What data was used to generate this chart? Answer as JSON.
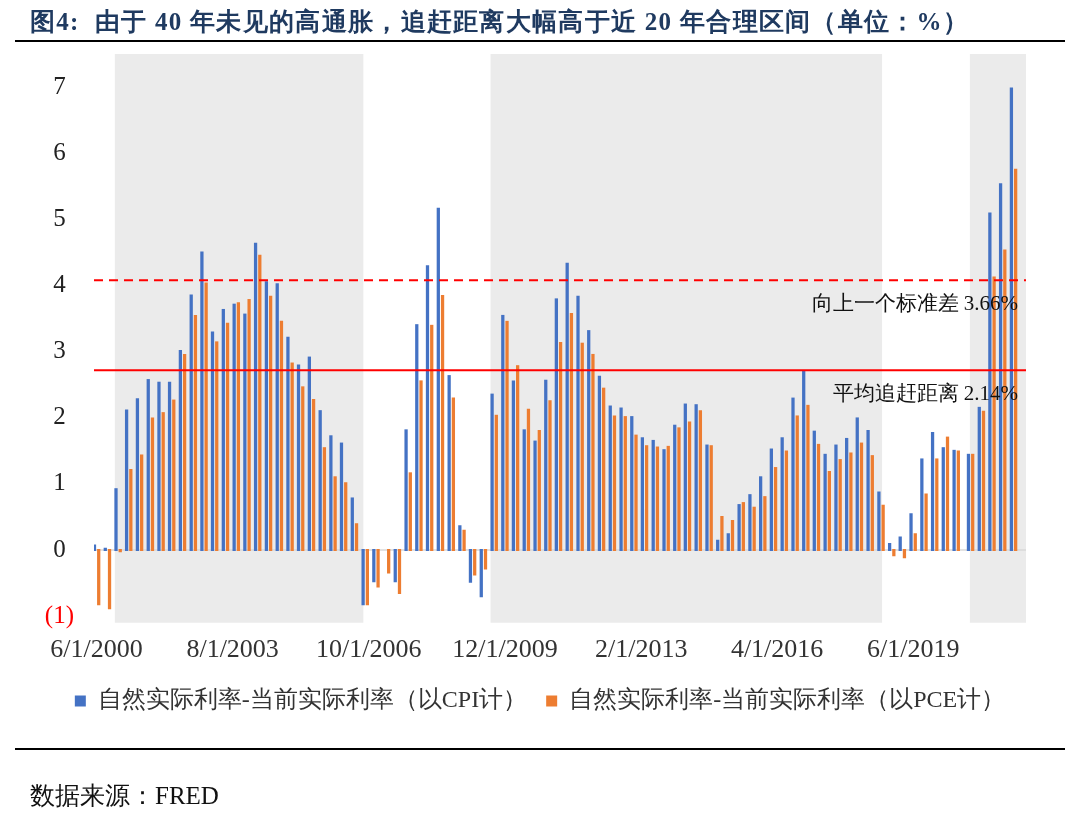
{
  "chart_data": {
    "type": "bar",
    "title": "图4:  由于 40 年未见的高通胀，追赶距离大幅高于近 20 年合理区间（单位：%）",
    "x": [
      "2000-06",
      "2000-09",
      "2000-12",
      "2001-03",
      "2001-06",
      "2001-09",
      "2001-12",
      "2002-03",
      "2002-06",
      "2002-09",
      "2002-12",
      "2003-03",
      "2003-06",
      "2003-09",
      "2003-12",
      "2004-03",
      "2004-06",
      "2004-09",
      "2004-12",
      "2005-03",
      "2005-06",
      "2005-09",
      "2005-12",
      "2006-03",
      "2006-06",
      "2006-09",
      "2006-12",
      "2007-03",
      "2007-06",
      "2007-09",
      "2007-12",
      "2008-03",
      "2008-06",
      "2008-09",
      "2008-12",
      "2009-03",
      "2009-06",
      "2009-09",
      "2009-12",
      "2010-03",
      "2010-06",
      "2010-09",
      "2010-12",
      "2011-03",
      "2011-06",
      "2011-09",
      "2011-12",
      "2012-03",
      "2012-06",
      "2012-09",
      "2012-12",
      "2013-03",
      "2013-06",
      "2013-09",
      "2013-12",
      "2014-03",
      "2014-06",
      "2014-09",
      "2014-12",
      "2015-03",
      "2015-06",
      "2015-09",
      "2015-12",
      "2016-03",
      "2016-06",
      "2016-09",
      "2016-12",
      "2017-03",
      "2017-06",
      "2017-09",
      "2017-12",
      "2018-03",
      "2018-06",
      "2018-09",
      "2018-12",
      "2019-03",
      "2019-06",
      "2019-09",
      "2019-12",
      "2020-03",
      "2020-06",
      "2020-10",
      "2021-01",
      "2021-04",
      "2021-07",
      "2021-10"
    ],
    "series": [
      {
        "name": "自然实际利率-当前实际利率（以CPI计）",
        "color": "#4472c4",
        "values": [
          0.07,
          0.02,
          0.92,
          2.11,
          2.28,
          2.57,
          2.53,
          2.53,
          3.01,
          3.85,
          4.5,
          3.29,
          3.63,
          3.71,
          3.56,
          4.63,
          4.05,
          4.02,
          3.21,
          2.79,
          2.91,
          2.1,
          1.72,
          1.61,
          0.78,
          -0.82,
          -0.47,
          null,
          -0.47,
          1.81,
          3.4,
          4.29,
          5.16,
          2.63,
          0.36,
          -0.48,
          -0.7,
          2.35,
          3.54,
          2.55,
          1.81,
          1.64,
          2.56,
          3.79,
          4.33,
          3.83,
          3.31,
          2.62,
          2.17,
          2.14,
          2.01,
          1.69,
          1.65,
          1.51,
          1.88,
          2.2,
          2.19,
          1.58,
          0.14,
          0.24,
          0.68,
          0.83,
          1.1,
          1.52,
          1.69,
          2.29,
          2.7,
          1.79,
          1.44,
          1.58,
          1.68,
          1.99,
          1.8,
          0.87,
          0.09,
          0.19,
          0.54,
          1.37,
          1.77,
          1.54,
          1.5,
          1.44,
          2.15,
          5.09,
          5.53,
          6.98
        ]
      },
      {
        "name": "自然实际利率-当前实际利率（以PCE计）",
        "color": "#ed7d31",
        "values": [
          -0.82,
          -0.88,
          -0.02,
          1.21,
          1.43,
          1.99,
          2.07,
          2.26,
          2.95,
          3.54,
          4.03,
          3.14,
          3.42,
          3.73,
          3.78,
          4.45,
          3.83,
          3.45,
          2.82,
          2.46,
          2.27,
          1.54,
          1.1,
          1.01,
          0.39,
          -0.82,
          -0.55,
          -0.34,
          -0.65,
          1.16,
          2.55,
          3.39,
          3.84,
          2.29,
          0.29,
          -0.37,
          -0.28,
          2.03,
          3.45,
          2.78,
          2.12,
          1.8,
          2.25,
          3.13,
          3.57,
          3.12,
          2.95,
          2.44,
          2.02,
          2.01,
          1.73,
          1.57,
          1.55,
          1.56,
          1.84,
          1.93,
          2.1,
          1.57,
          0.5,
          0.44,
          0.71,
          0.64,
          0.8,
          1.24,
          1.49,
          2.02,
          2.18,
          1.59,
          1.18,
          1.36,
          1.46,
          1.61,
          1.42,
          0.67,
          -0.08,
          -0.11,
          0.24,
          0.84,
          1.37,
          1.7,
          1.49,
          1.44,
          2.09,
          4.12,
          4.53,
          5.75
        ]
      }
    ],
    "xlim": [
      "2000-05-10",
      "2022-01-15"
    ],
    "xticks": [
      {
        "value": "2000-06-01",
        "label": "6/1/2000"
      },
      {
        "value": "2003-08-01",
        "label": "8/1/2003"
      },
      {
        "value": "2006-10-01",
        "label": "10/1/2006"
      },
      {
        "value": "2009-12-01",
        "label": "12/1/2009"
      },
      {
        "value": "2013-02-01",
        "label": "2/1/2013"
      },
      {
        "value": "2016-04-01",
        "label": "4/1/2016"
      },
      {
        "value": "2019-06-01",
        "label": "6/1/2019"
      }
    ],
    "ylim": [
      -1.1,
      7.5
    ],
    "yticks": [
      {
        "value": -1,
        "label": "(1)"
      },
      0,
      1,
      2,
      3,
      4,
      5,
      6,
      7
    ],
    "bands": [
      {
        "axis": "x",
        "from": "2000-11-03",
        "to": "2006-08-16",
        "color": "#ebebeb"
      },
      {
        "axis": "x",
        "from": "2009-08-01",
        "to": "2018-09-10",
        "color": "#ebebeb"
      },
      {
        "axis": "x",
        "from": "2020-09-25",
        "to": "2022-01-15",
        "color": "#ebebeb"
      }
    ],
    "ref_lines": [
      {
        "axis": "y",
        "value": 4.08,
        "label": "向上一个标准差 3.66%",
        "color": "#ff0000",
        "line_style": "dashed"
      },
      {
        "axis": "y",
        "value": 2.72,
        "label": "平均追赶距离 2.14%",
        "color": "#ff0000",
        "line_style": "solid"
      }
    ],
    "legend": "bottom",
    "annotations": [
      "数据来源：FRED"
    ]
  }
}
